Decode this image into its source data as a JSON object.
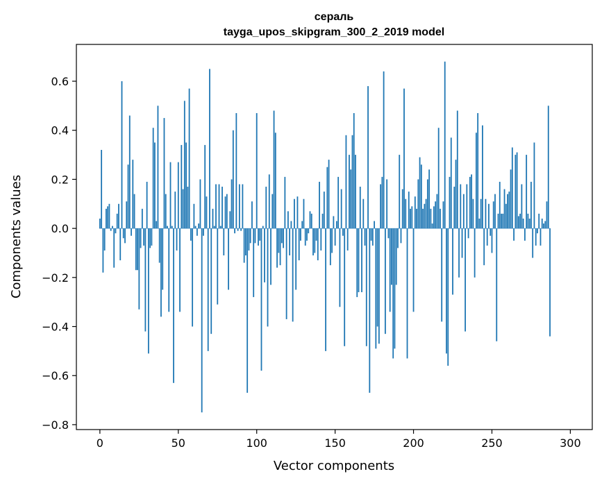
{
  "chart_data": {
    "type": "bar",
    "title": "сераль",
    "subtitle": "tayga_upos_skipgram_300_2_2019 model",
    "xlabel": "Vector components",
    "ylabel": "Components values",
    "xlim": [
      -15,
      314
    ],
    "ylim": [
      -0.82,
      0.75
    ],
    "xticks": [
      0,
      50,
      100,
      150,
      200,
      250,
      300
    ],
    "xtick_labels": [
      "0",
      "50",
      "100",
      "150",
      "200",
      "250",
      "300"
    ],
    "yticks": [
      -0.8,
      -0.6,
      -0.4,
      -0.2,
      0.0,
      0.2,
      0.4,
      0.6
    ],
    "ytick_labels": [
      "−0.8",
      "−0.6",
      "−0.4",
      "−0.2",
      "0.0",
      "0.2",
      "0.4",
      "0.6"
    ],
    "grid": false,
    "bar_color": "#1f77b4",
    "values": [
      0.04,
      0.32,
      -0.18,
      -0.09,
      0.08,
      0.09,
      0.1,
      -0.01,
      0.01,
      -0.16,
      -0.02,
      0.06,
      0.1,
      -0.13,
      0.6,
      -0.04,
      -0.06,
      0.11,
      0.26,
      0.46,
      -0.03,
      0.28,
      0.14,
      -0.17,
      -0.17,
      -0.33,
      -0.08,
      0.08,
      -0.07,
      -0.42,
      0.19,
      -0.51,
      -0.08,
      -0.07,
      0.41,
      0.35,
      0.03,
      0.5,
      -0.14,
      -0.36,
      -0.25,
      0.45,
      0.14,
      0.01,
      -0.34,
      0.27,
      0.01,
      -0.63,
      0.15,
      -0.09,
      0.27,
      -0.34,
      0.34,
      0.16,
      0.52,
      0.35,
      0.17,
      0.57,
      -0.05,
      -0.4,
      0.1,
      0.01,
      -0.03,
      0.02,
      0.2,
      -0.75,
      -0.03,
      0.34,
      0.13,
      -0.5,
      0.65,
      -0.43,
      0.08,
      0.01,
      0.18,
      -0.31,
      0.18,
      0.01,
      0.17,
      -0.11,
      0.13,
      0.14,
      -0.25,
      0.07,
      0.2,
      0.4,
      -0.02,
      0.47,
      -0.01,
      0.18,
      -0.01,
      0.18,
      -0.14,
      -0.11,
      -0.67,
      -0.09,
      -0.06,
      0.11,
      -0.28,
      -0.06,
      0.47,
      -0.07,
      -0.05,
      -0.58,
      0.01,
      -0.22,
      0.17,
      -0.4,
      0.22,
      -0.23,
      0.14,
      0.48,
      0.39,
      -0.16,
      -0.1,
      -0.15,
      -0.06,
      -0.08,
      0.21,
      -0.37,
      0.07,
      -0.11,
      0.03,
      -0.38,
      0.12,
      -0.25,
      0.13,
      -0.13,
      -0.05,
      0.03,
      0.12,
      -0.07,
      -0.05,
      -0.02,
      0.07,
      0.06,
      -0.11,
      -0.1,
      -0.05,
      -0.13,
      0.19,
      -0.09,
      0.06,
      0.15,
      -0.5,
      0.25,
      0.28,
      -0.15,
      -0.1,
      0.05,
      -0.07,
      0.03,
      0.21,
      -0.32,
      0.16,
      -0.03,
      -0.48,
      0.38,
      -0.09,
      0.3,
      0.24,
      0.38,
      0.47,
      0.3,
      -0.28,
      -0.26,
      0.17,
      -0.26,
      0.12,
      -0.07,
      -0.48,
      0.58,
      -0.67,
      -0.05,
      -0.07,
      0.03,
      -0.49,
      -0.4,
      -0.47,
      0.18,
      0.21,
      0.64,
      -0.43,
      0.2,
      -0.04,
      -0.34,
      -0.23,
      -0.53,
      -0.49,
      -0.23,
      -0.08,
      0.3,
      -0.06,
      0.16,
      0.57,
      0.12,
      -0.53,
      0.15,
      0.08,
      0.09,
      -0.34,
      0.13,
      0.08,
      0.2,
      0.29,
      0.26,
      0.08,
      0.1,
      0.12,
      0.2,
      0.24,
      0.08,
      0.02,
      0.09,
      0.11,
      0.14,
      0.41,
      0.08,
      -0.38,
      0.11,
      0.68,
      -0.51,
      -0.56,
      0.21,
      0.37,
      -0.27,
      0.17,
      0.28,
      0.48,
      -0.2,
      0.18,
      -0.12,
      0.14,
      -0.42,
      0.18,
      -0.04,
      0.21,
      0.22,
      0.12,
      -0.2,
      0.39,
      0.47,
      0.04,
      0.12,
      0.42,
      -0.15,
      0.12,
      -0.07,
      0.1,
      -0.03,
      -0.1,
      0.11,
      0.14,
      -0.46,
      0.06,
      0.19,
      0.06,
      0.06,
      0.16,
      0.1,
      0.14,
      0.15,
      0.24,
      0.33,
      -0.05,
      0.3,
      0.31,
      0.05,
      0.06,
      0.18,
      0.04,
      -0.05,
      0.3,
      0.06,
      0.04,
      0.19,
      -0.12,
      0.35,
      -0.07,
      -0.02,
      0.06,
      -0.07,
      0.04,
      0.02,
      0.03,
      0.11,
      0.5,
      -0.44
    ]
  }
}
